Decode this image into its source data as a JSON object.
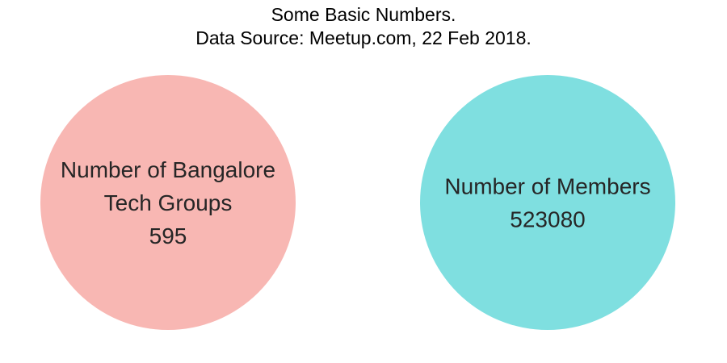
{
  "chart_data": {
    "type": "bubble",
    "title": "Some Basic Numbers.",
    "subtitle": "Data Source: Meetup.com, 22 Feb 2018.",
    "bubbles": [
      {
        "label_lines": [
          "Number of Bangalore",
          "Tech Groups"
        ],
        "value": 595,
        "value_label": "595",
        "color": "#F8B7B3"
      },
      {
        "label_lines": [
          "Number of Members"
        ],
        "value": 523080,
        "value_label": "523080",
        "color": "#7FDFE0"
      }
    ],
    "legend": "none",
    "grid": false,
    "axes": false
  }
}
